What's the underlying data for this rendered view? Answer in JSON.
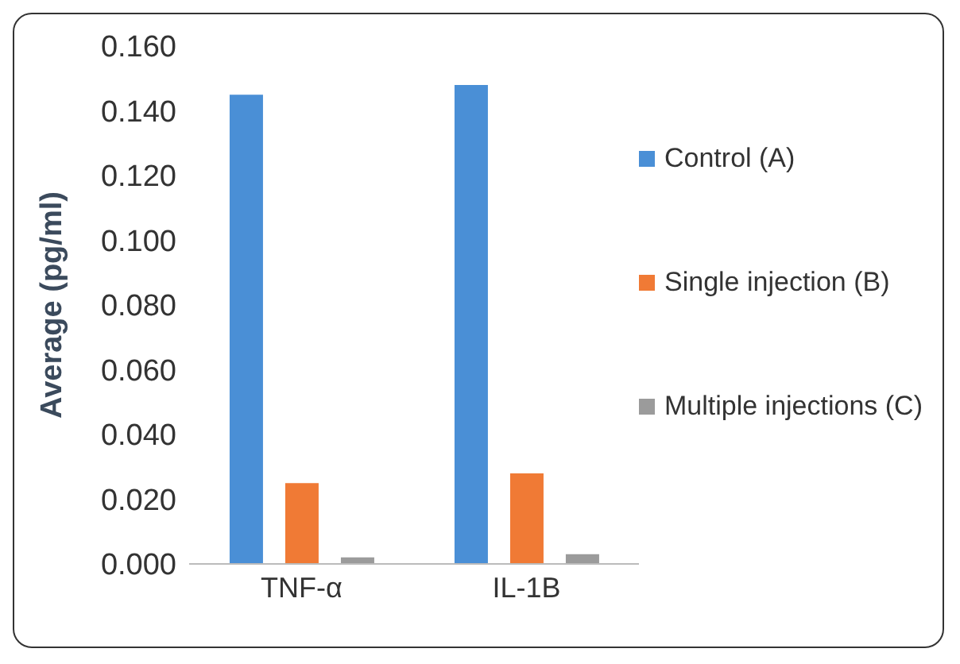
{
  "chart_data": {
    "type": "bar",
    "ylabel": "Average (pg/ml)",
    "categories": [
      "TNF-α",
      "IL-1B"
    ],
    "series": [
      {
        "name": "Control (A)",
        "color": "#4a8fd6",
        "values": [
          0.145,
          0.148
        ]
      },
      {
        "name": "Single injection (B)",
        "color": "#f07a35",
        "values": [
          0.025,
          0.028
        ]
      },
      {
        "name": "Multiple injections (C)",
        "color": "#9b9b9b",
        "values": [
          0.002,
          0.003
        ]
      }
    ],
    "ylim": [
      0,
      0.16
    ],
    "yticks": [
      {
        "value": 0,
        "label": "0.000"
      },
      {
        "value": 0.02,
        "label": "0.020"
      },
      {
        "value": 0.04,
        "label": "0.040"
      },
      {
        "value": 0.06,
        "label": "0.060"
      },
      {
        "value": 0.08,
        "label": "0.080"
      },
      {
        "value": 0.1,
        "label": "0.100"
      },
      {
        "value": 0.12,
        "label": "0.120"
      },
      {
        "value": 0.14,
        "label": "0.140"
      },
      {
        "value": 0.16,
        "label": "0.160"
      }
    ],
    "grid": false,
    "legend": "right"
  }
}
